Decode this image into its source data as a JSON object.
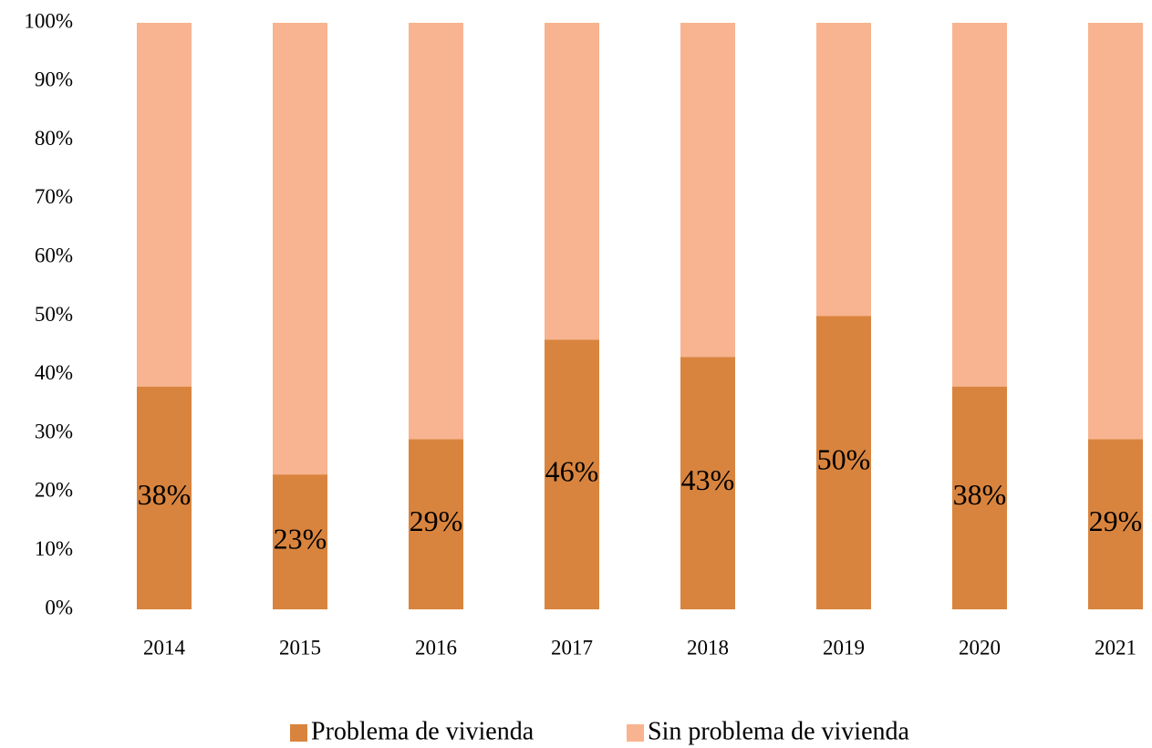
{
  "chart_data": {
    "type": "stacked_bar",
    "categories": [
      "2014",
      "2015",
      "2016",
      "2017",
      "2018",
      "2019",
      "2020",
      "2021"
    ],
    "series": [
      {
        "name": "Problema de vivienda",
        "color": "#d9843e",
        "values": [
          38,
          23,
          29,
          46,
          43,
          50,
          38,
          29
        ],
        "value_labels": [
          "38%",
          "23%",
          "29%",
          "46%",
          "43%",
          "50%",
          "38%",
          "29%"
        ]
      },
      {
        "name": "Sin problema de vivienda",
        "color": "#f8b490",
        "values": [
          62,
          77,
          71,
          54,
          57,
          50,
          62,
          71
        ]
      }
    ],
    "ylim": [
      0,
      100
    ],
    "yticks": [
      {
        "value": 0,
        "label": "0%"
      },
      {
        "value": 10,
        "label": "10%"
      },
      {
        "value": 20,
        "label": "20%"
      },
      {
        "value": 30,
        "label": "30%"
      },
      {
        "value": 40,
        "label": "40%"
      },
      {
        "value": 50,
        "label": "50%"
      },
      {
        "value": 60,
        "label": "60%"
      },
      {
        "value": 70,
        "label": "70%"
      },
      {
        "value": 80,
        "label": "80%"
      },
      {
        "value": 90,
        "label": "90%"
      },
      {
        "value": 100,
        "label": "100%"
      }
    ],
    "grid": false,
    "legend": "bottom"
  }
}
